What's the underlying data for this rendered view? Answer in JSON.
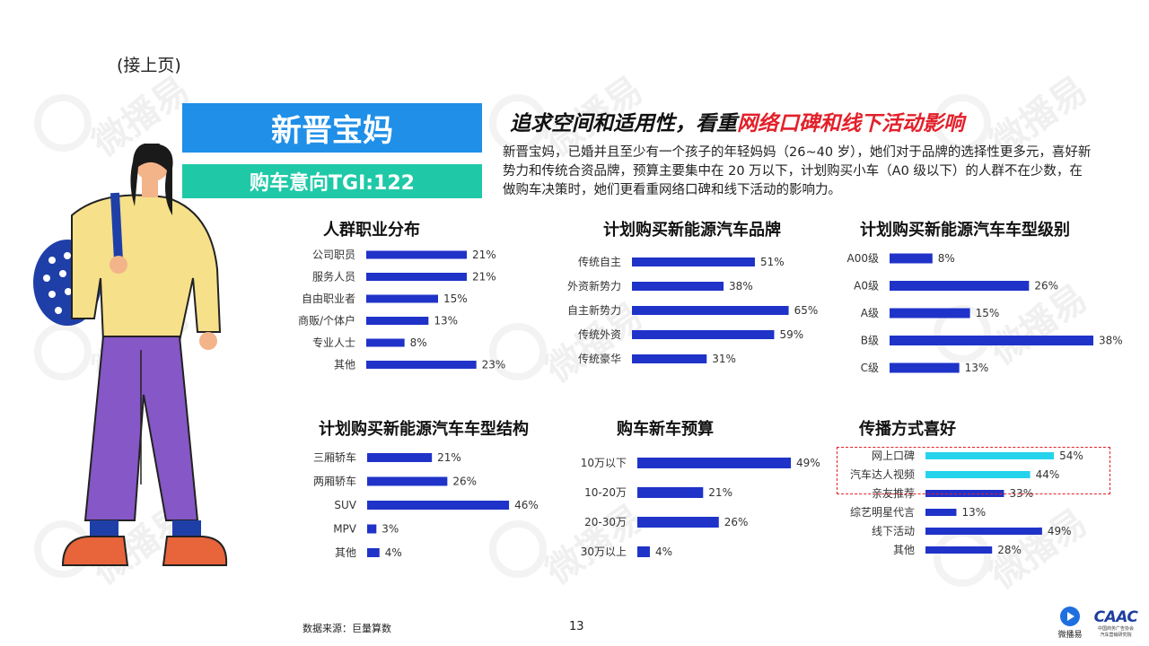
{
  "continued": "(接上页)",
  "persona": {
    "title": "新晋宝妈",
    "tgi": "购车意向TGI:122"
  },
  "headline": {
    "part1": "追求空间和适用性，看重",
    "highlight": "网络口碑和线下活动影响"
  },
  "description": "新晋宝妈，已婚并且至少有一个孩子的年轻妈妈（26~40 岁），她们对于品牌的选择性更多元，喜好新势力和传统合资品牌，预算主要集中在 20 万以下，计划购买小车（A0 级以下）的人群不在少数，在做购车决策时，她们更看重网络口碑和线下活动的影响力。",
  "watermark_text": "微播易",
  "colors": {
    "bar": "#1f33c9",
    "bar_highlight": "#27d3ec",
    "persona": "#1f8fe8",
    "tgi": "#1fc9a7",
    "accent": "#e3202a"
  },
  "chart_data": [
    {
      "id": "occupation",
      "type": "bar",
      "orientation": "horizontal",
      "title": "人群职业分布",
      "categories": [
        "公司职员",
        "服务人员",
        "自由职业者",
        "商贩/个体户",
        "专业人士",
        "其他"
      ],
      "values": [
        21,
        21,
        15,
        13,
        8,
        23
      ],
      "labels": [
        "21%",
        "21%",
        "15%",
        "13%",
        "8%",
        "23%"
      ],
      "xlim": [
        0,
        30
      ]
    },
    {
      "id": "brand",
      "type": "bar",
      "orientation": "horizontal",
      "title": "计划购买新能源汽车品牌",
      "categories": [
        "传统自主",
        "外资新势力",
        "自主新势力",
        "传统外资",
        "传统豪华"
      ],
      "values": [
        51,
        38,
        65,
        59,
        31
      ],
      "labels": [
        "51%",
        "38%",
        "65%",
        "59%",
        "31%"
      ],
      "xlim": [
        0,
        70
      ]
    },
    {
      "id": "level",
      "type": "bar",
      "orientation": "horizontal",
      "title": "计划购买新能源汽车车型级别",
      "categories": [
        "A00级",
        "A0级",
        "A级",
        "B级",
        "C级"
      ],
      "values": [
        8,
        26,
        15,
        38,
        13
      ],
      "labels": [
        "8%",
        "26%",
        "15%",
        "38%",
        "13%"
      ],
      "xlim": [
        0,
        38
      ]
    },
    {
      "id": "structure",
      "type": "bar",
      "orientation": "horizontal",
      "title": "计划购买新能源汽车车型结构",
      "categories": [
        "三厢轿车",
        "两厢轿车",
        "SUV",
        "MPV",
        "其他"
      ],
      "values": [
        21,
        26,
        46,
        3,
        4
      ],
      "labels": [
        "21%",
        "26%",
        "46%",
        "3%",
        "4%"
      ],
      "xlim": [
        0,
        55
      ]
    },
    {
      "id": "budget",
      "type": "bar",
      "orientation": "horizontal",
      "title": "购车新车预算",
      "categories": [
        "10万以下",
        "10-20万",
        "20-30万",
        "30万以上"
      ],
      "values": [
        49,
        21,
        26,
        4
      ],
      "labels": [
        "49%",
        "21%",
        "26%",
        "4%"
      ],
      "xlim": [
        0,
        55
      ]
    },
    {
      "id": "channel",
      "type": "bar",
      "orientation": "horizontal",
      "title": "传播方式喜好",
      "categories": [
        "网上口碑",
        "汽车达人视频",
        "亲友推荐",
        "综艺明星代言",
        "线下活动",
        "其他"
      ],
      "values": [
        54,
        44,
        33,
        13,
        49,
        28
      ],
      "labels": [
        "54%",
        "44%",
        "33%",
        "13%",
        "49%",
        "28%"
      ],
      "highlighted": [
        "网上口碑",
        "汽车达人视频"
      ],
      "xlim": [
        0,
        60
      ]
    }
  ],
  "footer": {
    "source": "数据来源：巨量算数",
    "page": "13",
    "logo_text": "微播易",
    "caac": "CAAC",
    "caac_sub1": "中国商务广告协会",
    "caac_sub2": "汽车营销研究院"
  }
}
